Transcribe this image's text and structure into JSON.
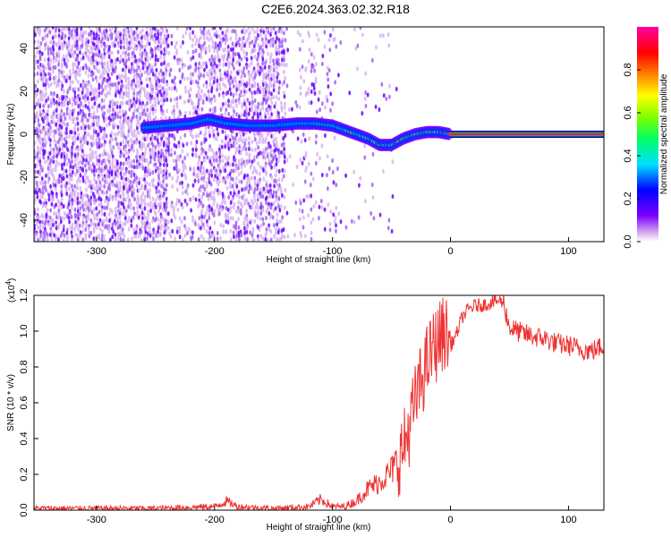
{
  "title": "C2E6.2024.363.02.32.R18",
  "chart_data": [
    {
      "type": "heatmap",
      "xlabel": "Height of straight line (km)",
      "ylabel": "Frequency (Hz)",
      "xlim": [
        -353,
        130
      ],
      "ylim": [
        -50,
        50
      ],
      "xticks": [
        -300,
        -200,
        -100,
        0,
        100
      ],
      "xtick_labels": [
        "-300",
        "-200",
        "-100",
        "0",
        "100"
      ],
      "yticks": [
        -40,
        -20,
        0,
        20,
        40
      ],
      "ytick_labels": [
        "-40",
        "-20",
        "0",
        "20",
        "40"
      ],
      "colorbar": {
        "label": "Normalized spectral amplitude",
        "range": [
          0,
          1
        ],
        "ticks": [
          0.0,
          0.2,
          0.4,
          0.6,
          0.8
        ],
        "tick_labels": [
          "0.0",
          "0.2",
          "0.4",
          "0.6",
          "0.8"
        ],
        "colors": [
          "#ffffff",
          "#d8b0f0",
          "#7b00ff",
          "#0000ff",
          "#00e0ff",
          "#00ff60",
          "#80ff00",
          "#ffff00",
          "#ff8000",
          "#ff0000",
          "#ff00a0"
        ]
      },
      "ridge": {
        "x": [
          -260,
          -240,
          -220,
          -205,
          -190,
          -170,
          -150,
          -130,
          -115,
          -100,
          -90,
          -80,
          -70,
          -60,
          -50,
          -40,
          -30,
          -20,
          -10,
          0,
          130
        ],
        "y": [
          3,
          4,
          5,
          7,
          5,
          4,
          4,
          5,
          5,
          4,
          2,
          0,
          -2,
          -5,
          -5,
          -2,
          0,
          1,
          1,
          0,
          0
        ]
      },
      "constant_line": {
        "x": [
          0,
          130
        ],
        "y": 0
      },
      "grid": false
    },
    {
      "type": "line",
      "xlabel": "Height of straight line (km)",
      "ylabel": "SNR (10 * v/v)",
      "y_multiplier": "(x10",
      "y_multiplier_exp": "4",
      "y_multiplier_close": ")",
      "xlim": [
        -353,
        130
      ],
      "ylim": [
        0,
        1.2
      ],
      "xticks": [
        -300,
        -200,
        -100,
        0,
        100
      ],
      "xtick_labels": [
        "-300",
        "-200",
        "-100",
        "0",
        "100"
      ],
      "yticks": [
        0.0,
        0.2,
        0.4,
        0.6,
        0.8,
        1.0,
        1.2
      ],
      "ytick_labels": [
        "0.0",
        "0.2",
        "0.4",
        "0.6",
        "0.8",
        "1.0",
        "1.2"
      ],
      "series": [
        {
          "color": "#ee3333",
          "x": [
            -353,
            -300,
            -250,
            -200,
            -190,
            -180,
            -150,
            -120,
            -110,
            -100,
            -90,
            -80,
            -70,
            -60,
            -50,
            -45,
            -40,
            -35,
            -30,
            -25,
            -20,
            -15,
            -10,
            -5,
            0,
            5,
            10,
            15,
            20,
            30,
            40,
            45,
            50,
            60,
            70,
            80,
            90,
            100,
            110,
            120,
            130
          ],
          "y": [
            0.01,
            0.01,
            0.01,
            0.02,
            0.05,
            0.02,
            0.01,
            0.02,
            0.06,
            0.02,
            0.02,
            0.05,
            0.12,
            0.16,
            0.22,
            0.28,
            0.34,
            0.46,
            0.6,
            0.72,
            0.82,
            0.9,
            0.95,
            1.0,
            0.92,
            0.98,
            1.08,
            1.12,
            1.14,
            1.15,
            1.17,
            1.16,
            1.02,
            0.99,
            0.97,
            0.96,
            0.93,
            0.92,
            0.9,
            0.89,
            0.92
          ]
        }
      ],
      "grid": false
    }
  ]
}
